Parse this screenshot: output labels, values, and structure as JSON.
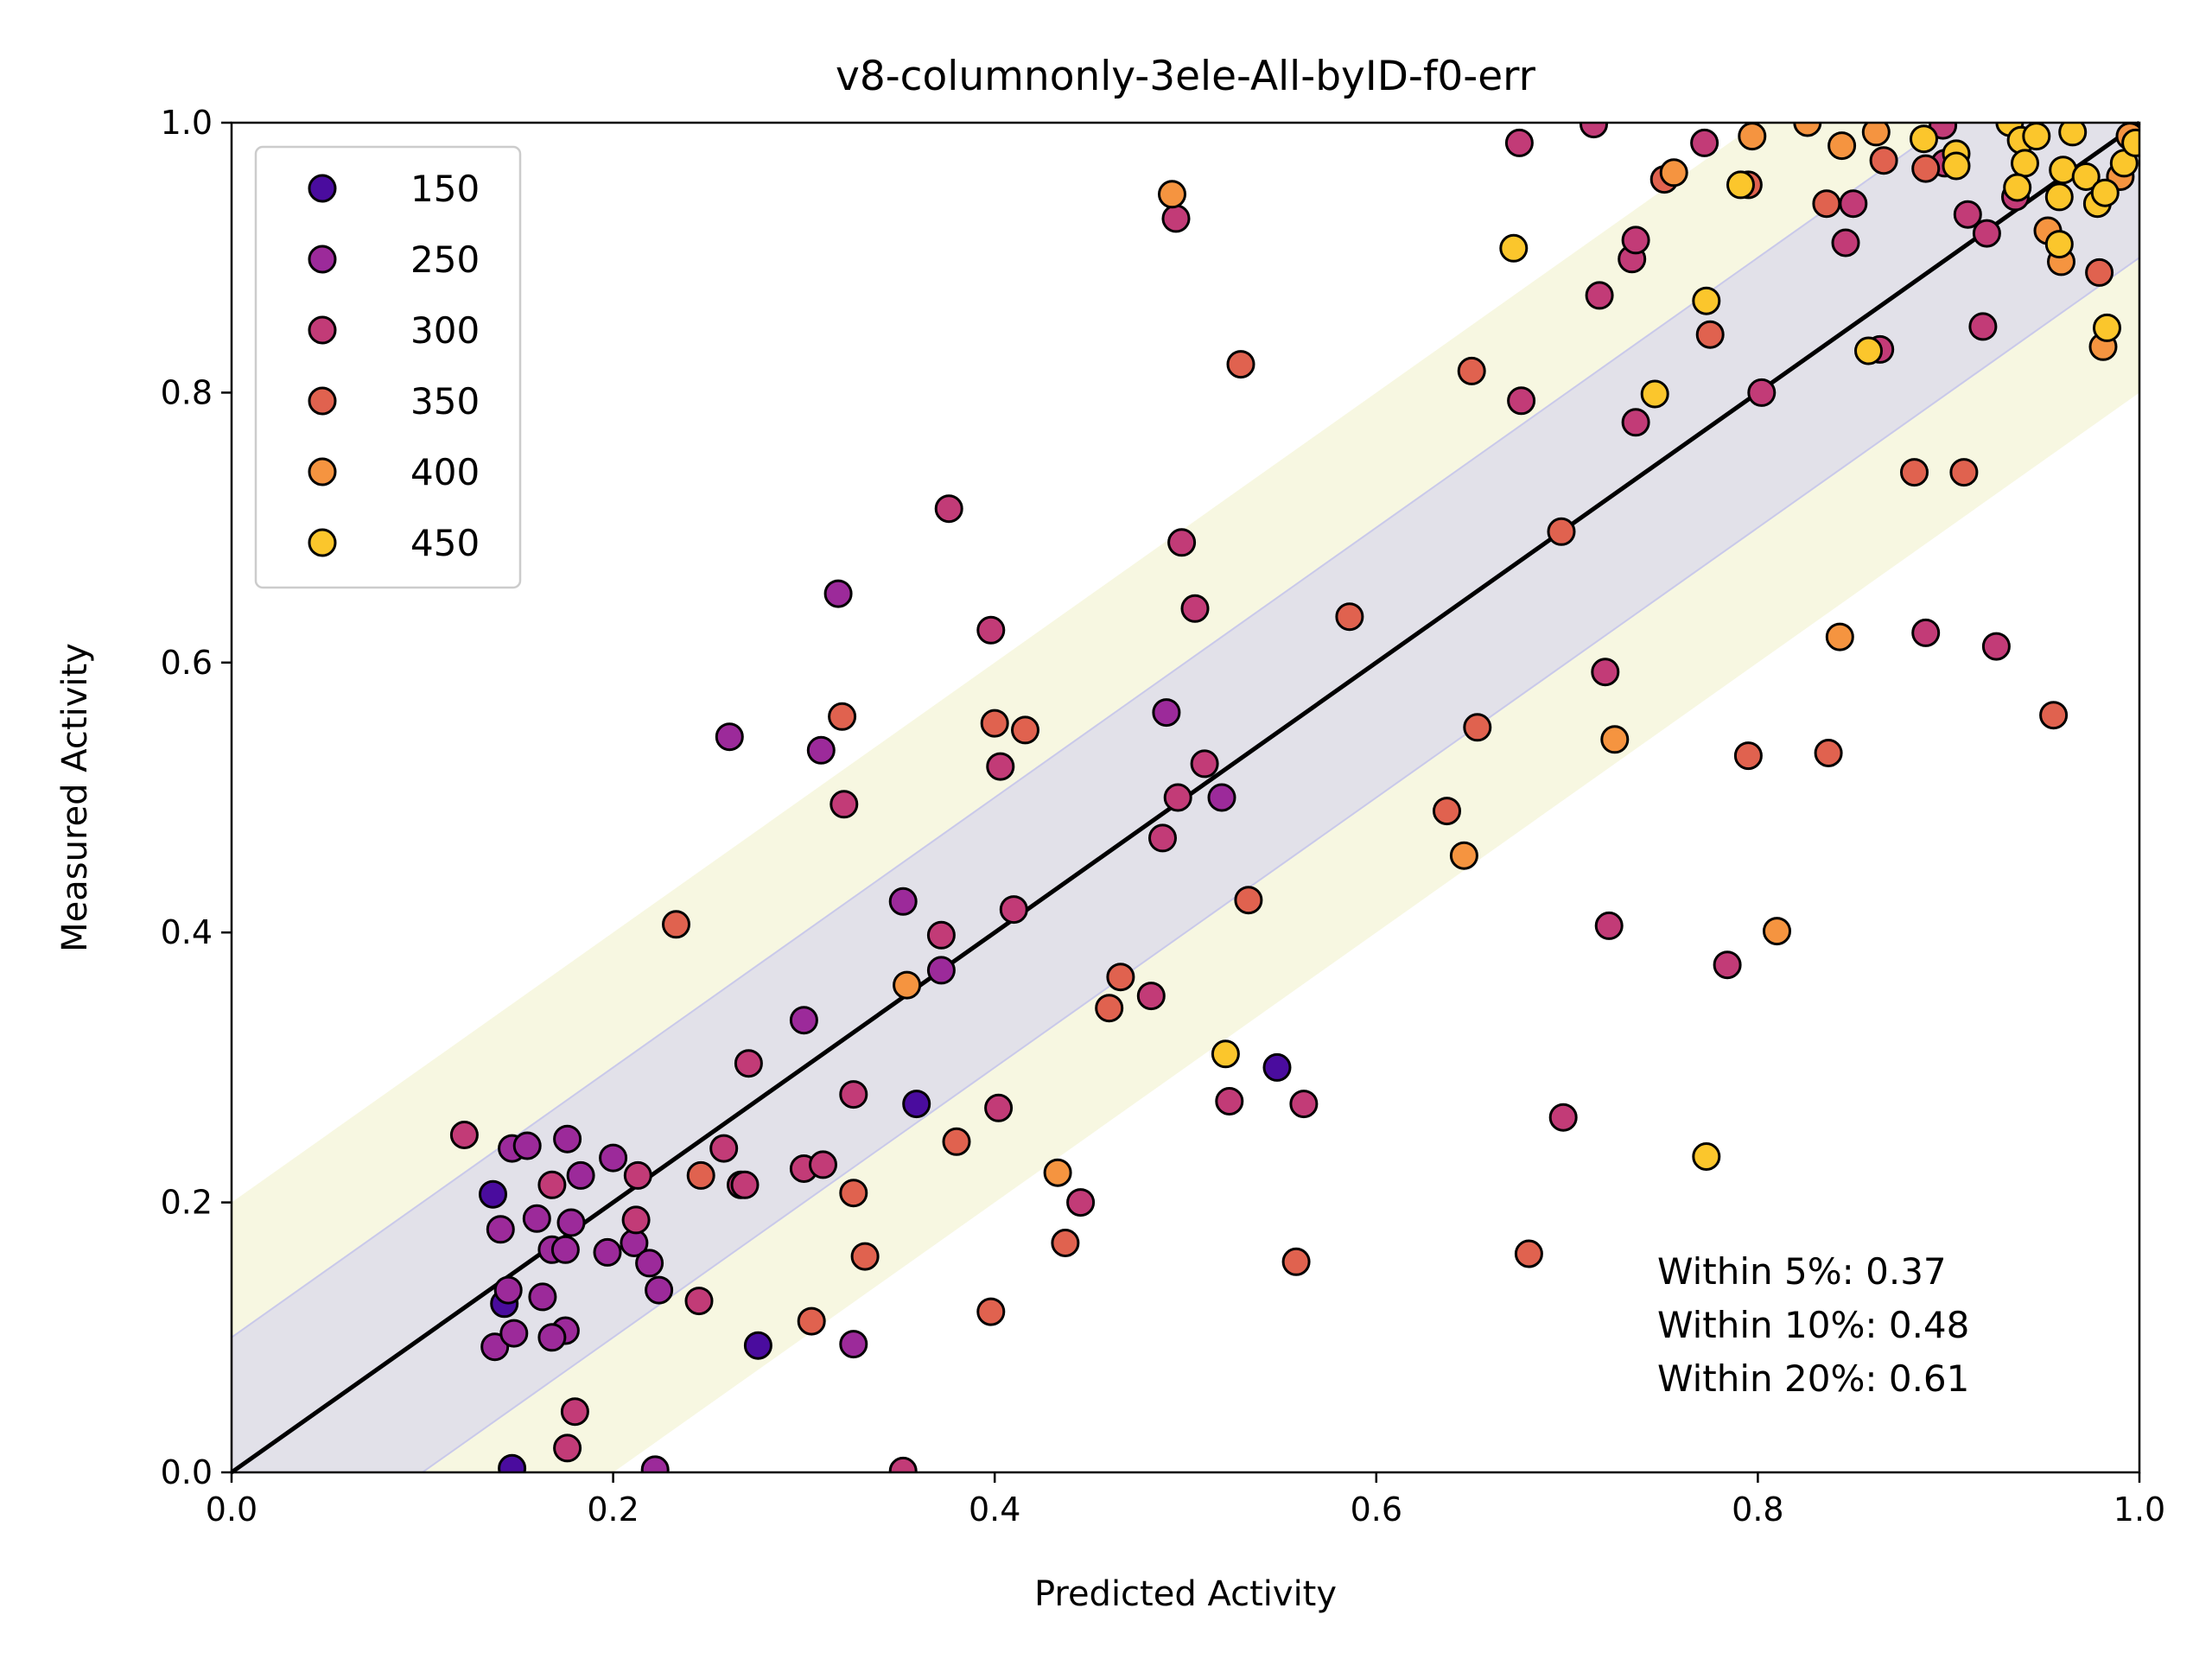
{
  "chart_data": {
    "type": "scatter",
    "title": "v8-columnonly-3ele-All-byID-f0-err",
    "xlabel": "Predicted Activity",
    "ylabel": "Measured Activity",
    "xlim": [
      0.0,
      1.0
    ],
    "ylim": [
      0.0,
      1.0
    ],
    "xticks": [
      "0.0",
      "0.2",
      "0.4",
      "0.6",
      "0.8",
      "1.0"
    ],
    "yticks": [
      "0.0",
      "0.2",
      "0.4",
      "0.6",
      "0.8",
      "1.0"
    ],
    "grid": false,
    "legend_position": "top-left",
    "bands": [
      {
        "half_width": 0.2,
        "color": "#f7f7e1"
      },
      {
        "half_width": 0.1,
        "color": "#e2e1e9"
      }
    ],
    "identity_line": {
      "from": [
        0,
        0
      ],
      "to": [
        1,
        1
      ],
      "color": "#000000"
    },
    "legend": [
      {
        "label": "150",
        "color": "#4a0c9e"
      },
      {
        "label": "250",
        "color": "#9c2a9a"
      },
      {
        "label": "300",
        "color": "#c23b77"
      },
      {
        "label": "350",
        "color": "#e0624f"
      },
      {
        "label": "400",
        "color": "#f59440"
      },
      {
        "label": "450",
        "color": "#fbc62c"
      }
    ],
    "annotations": [
      "Within 5%: 0.37",
      "Within 10%: 0.48",
      "Within 20%: 0.61"
    ],
    "series": [
      {
        "name": "150",
        "color": "#4a0c9e",
        "points": [
          [
            0.137,
            0.206
          ],
          [
            0.359,
            0.273
          ],
          [
            0.276,
            0.094
          ],
          [
            0.548,
            0.3
          ],
          [
            0.147,
            0.003
          ],
          [
            0.143,
            0.125
          ]
        ]
      },
      {
        "name": "250",
        "color": "#9c2a9a",
        "points": [
          [
            0.261,
            0.545
          ],
          [
            0.309,
            0.535
          ],
          [
            0.318,
            0.651
          ],
          [
            0.49,
            0.563
          ],
          [
            0.3,
            0.335
          ],
          [
            0.147,
            0.24
          ],
          [
            0.155,
            0.242
          ],
          [
            0.16,
            0.188
          ],
          [
            0.168,
            0.165
          ],
          [
            0.175,
            0.165
          ],
          [
            0.178,
            0.185
          ],
          [
            0.183,
            0.22
          ],
          [
            0.175,
            0.105
          ],
          [
            0.168,
            0.1
          ],
          [
            0.138,
            0.093
          ],
          [
            0.148,
            0.103
          ],
          [
            0.163,
            0.13
          ],
          [
            0.197,
            0.163
          ],
          [
            0.211,
            0.17
          ],
          [
            0.219,
            0.155
          ],
          [
            0.222,
            0.002
          ],
          [
            0.326,
            0.095
          ],
          [
            0.372,
            0.372
          ],
          [
            0.352,
            0.423
          ],
          [
            0.519,
            0.5
          ],
          [
            0.141,
            0.18
          ],
          [
            0.176,
            0.247
          ],
          [
            0.145,
            0.135
          ],
          [
            0.2,
            0.233
          ],
          [
            0.224,
            0.135
          ]
        ]
      },
      {
        "name": "300",
        "color": "#c23b77",
        "points": [
          [
            0.376,
            0.714
          ],
          [
            0.398,
            0.624
          ],
          [
            0.403,
            0.523
          ],
          [
            0.495,
            0.929
          ],
          [
            0.498,
            0.689
          ],
          [
            0.505,
            0.64
          ],
          [
            0.51,
            0.525
          ],
          [
            0.488,
            0.47
          ],
          [
            0.496,
            0.5
          ],
          [
            0.41,
            0.417
          ],
          [
            0.675,
            0.985
          ],
          [
            0.714,
            0.999
          ],
          [
            0.734,
            0.899
          ],
          [
            0.736,
            0.913
          ],
          [
            0.736,
            0.778
          ],
          [
            0.717,
            0.872
          ],
          [
            0.772,
            0.985
          ],
          [
            0.722,
            0.405
          ],
          [
            0.698,
            0.263
          ],
          [
            0.784,
            0.376
          ],
          [
            0.802,
            0.8
          ],
          [
            0.72,
            0.593
          ],
          [
            0.85,
            0.94
          ],
          [
            0.846,
            0.911
          ],
          [
            0.864,
            0.832
          ],
          [
            0.918,
            0.849
          ],
          [
            0.888,
            0.622
          ],
          [
            0.925,
            0.612
          ],
          [
            0.898,
            0.97
          ],
          [
            0.91,
            0.932
          ],
          [
            0.92,
            0.918
          ],
          [
            0.897,
            0.998
          ],
          [
            0.935,
            0.945
          ],
          [
            0.523,
            0.275
          ],
          [
            0.562,
            0.273
          ],
          [
            0.402,
            0.27
          ],
          [
            0.271,
            0.303
          ],
          [
            0.267,
            0.213
          ],
          [
            0.326,
            0.28
          ],
          [
            0.372,
            0.398
          ],
          [
            0.3,
            0.225
          ],
          [
            0.258,
            0.24
          ],
          [
            0.213,
            0.22
          ],
          [
            0.212,
            0.187
          ],
          [
            0.168,
            0.213
          ],
          [
            0.122,
            0.25
          ],
          [
            0.18,
            0.045
          ],
          [
            0.176,
            0.018
          ],
          [
            0.352,
            0.001
          ],
          [
            0.245,
            0.127
          ],
          [
            0.269,
            0.213
          ],
          [
            0.31,
            0.228
          ],
          [
            0.321,
            0.495
          ],
          [
            0.482,
            0.353
          ],
          [
            0.445,
            0.2
          ],
          [
            0.676,
            0.794
          ]
        ]
      },
      {
        "name": "350",
        "color": "#e0624f",
        "points": [
          [
            0.233,
            0.406
          ],
          [
            0.32,
            0.56
          ],
          [
            0.4,
            0.555
          ],
          [
            0.416,
            0.55
          ],
          [
            0.529,
            0.821
          ],
          [
            0.533,
            0.424
          ],
          [
            0.466,
            0.367
          ],
          [
            0.586,
            0.634
          ],
          [
            0.637,
            0.49
          ],
          [
            0.653,
            0.552
          ],
          [
            0.65,
            0.816
          ],
          [
            0.775,
            0.843
          ],
          [
            0.751,
            0.958
          ],
          [
            0.697,
            0.697
          ],
          [
            0.795,
            0.531
          ],
          [
            0.837,
            0.533
          ],
          [
            0.836,
            0.94
          ],
          [
            0.866,
            0.972
          ],
          [
            0.882,
            0.741
          ],
          [
            0.908,
            0.741
          ],
          [
            0.955,
            0.561
          ],
          [
            0.979,
            0.889
          ],
          [
            0.558,
            0.156
          ],
          [
            0.68,
            0.162
          ],
          [
            0.437,
            0.17
          ],
          [
            0.398,
            0.119
          ],
          [
            0.304,
            0.112
          ],
          [
            0.246,
            0.22
          ],
          [
            0.326,
            0.207
          ],
          [
            0.332,
            0.16
          ],
          [
            0.38,
            0.245
          ],
          [
            0.46,
            0.344
          ],
          [
            0.795,
            0.954
          ],
          [
            0.888,
            0.966
          ]
        ]
      },
      {
        "name": "400",
        "color": "#f59440",
        "points": [
          [
            0.493,
            0.947
          ],
          [
            0.354,
            0.361
          ],
          [
            0.433,
            0.222
          ],
          [
            0.646,
            0.457
          ],
          [
            0.725,
            0.543
          ],
          [
            0.843,
            0.619
          ],
          [
            0.81,
            0.401
          ],
          [
            0.756,
            0.963
          ],
          [
            0.797,
            0.99
          ],
          [
            0.826,
            1.0
          ],
          [
            0.844,
            0.983
          ],
          [
            0.862,
            0.993
          ],
          [
            0.952,
            0.92
          ],
          [
            0.959,
            0.897
          ],
          [
            0.981,
            0.834
          ],
          [
            0.99,
            0.96
          ],
          [
            0.995,
            0.99
          ]
        ]
      },
      {
        "name": "450",
        "color": "#fbc62c",
        "points": [
          [
            0.672,
            0.907
          ],
          [
            0.521,
            0.31
          ],
          [
            0.773,
            0.234
          ],
          [
            0.746,
            0.799
          ],
          [
            0.773,
            0.868
          ],
          [
            0.791,
            0.954
          ],
          [
            0.858,
            0.831
          ],
          [
            0.887,
            0.988
          ],
          [
            0.904,
            0.977
          ],
          [
            0.932,
            1.0
          ],
          [
            0.938,
            0.987
          ],
          [
            0.946,
            0.99
          ],
          [
            0.958,
            0.91
          ],
          [
            0.96,
            0.965
          ],
          [
            0.965,
            0.993
          ],
          [
            0.972,
            0.96
          ],
          [
            0.978,
            0.94
          ],
          [
            0.982,
            0.948
          ],
          [
            0.983,
            0.848
          ],
          [
            0.94,
            0.97
          ],
          [
            0.936,
            0.952
          ],
          [
            0.958,
            0.945
          ],
          [
            0.992,
            0.97
          ],
          [
            0.998,
            0.985
          ],
          [
            0.904,
            0.968
          ]
        ]
      }
    ]
  }
}
